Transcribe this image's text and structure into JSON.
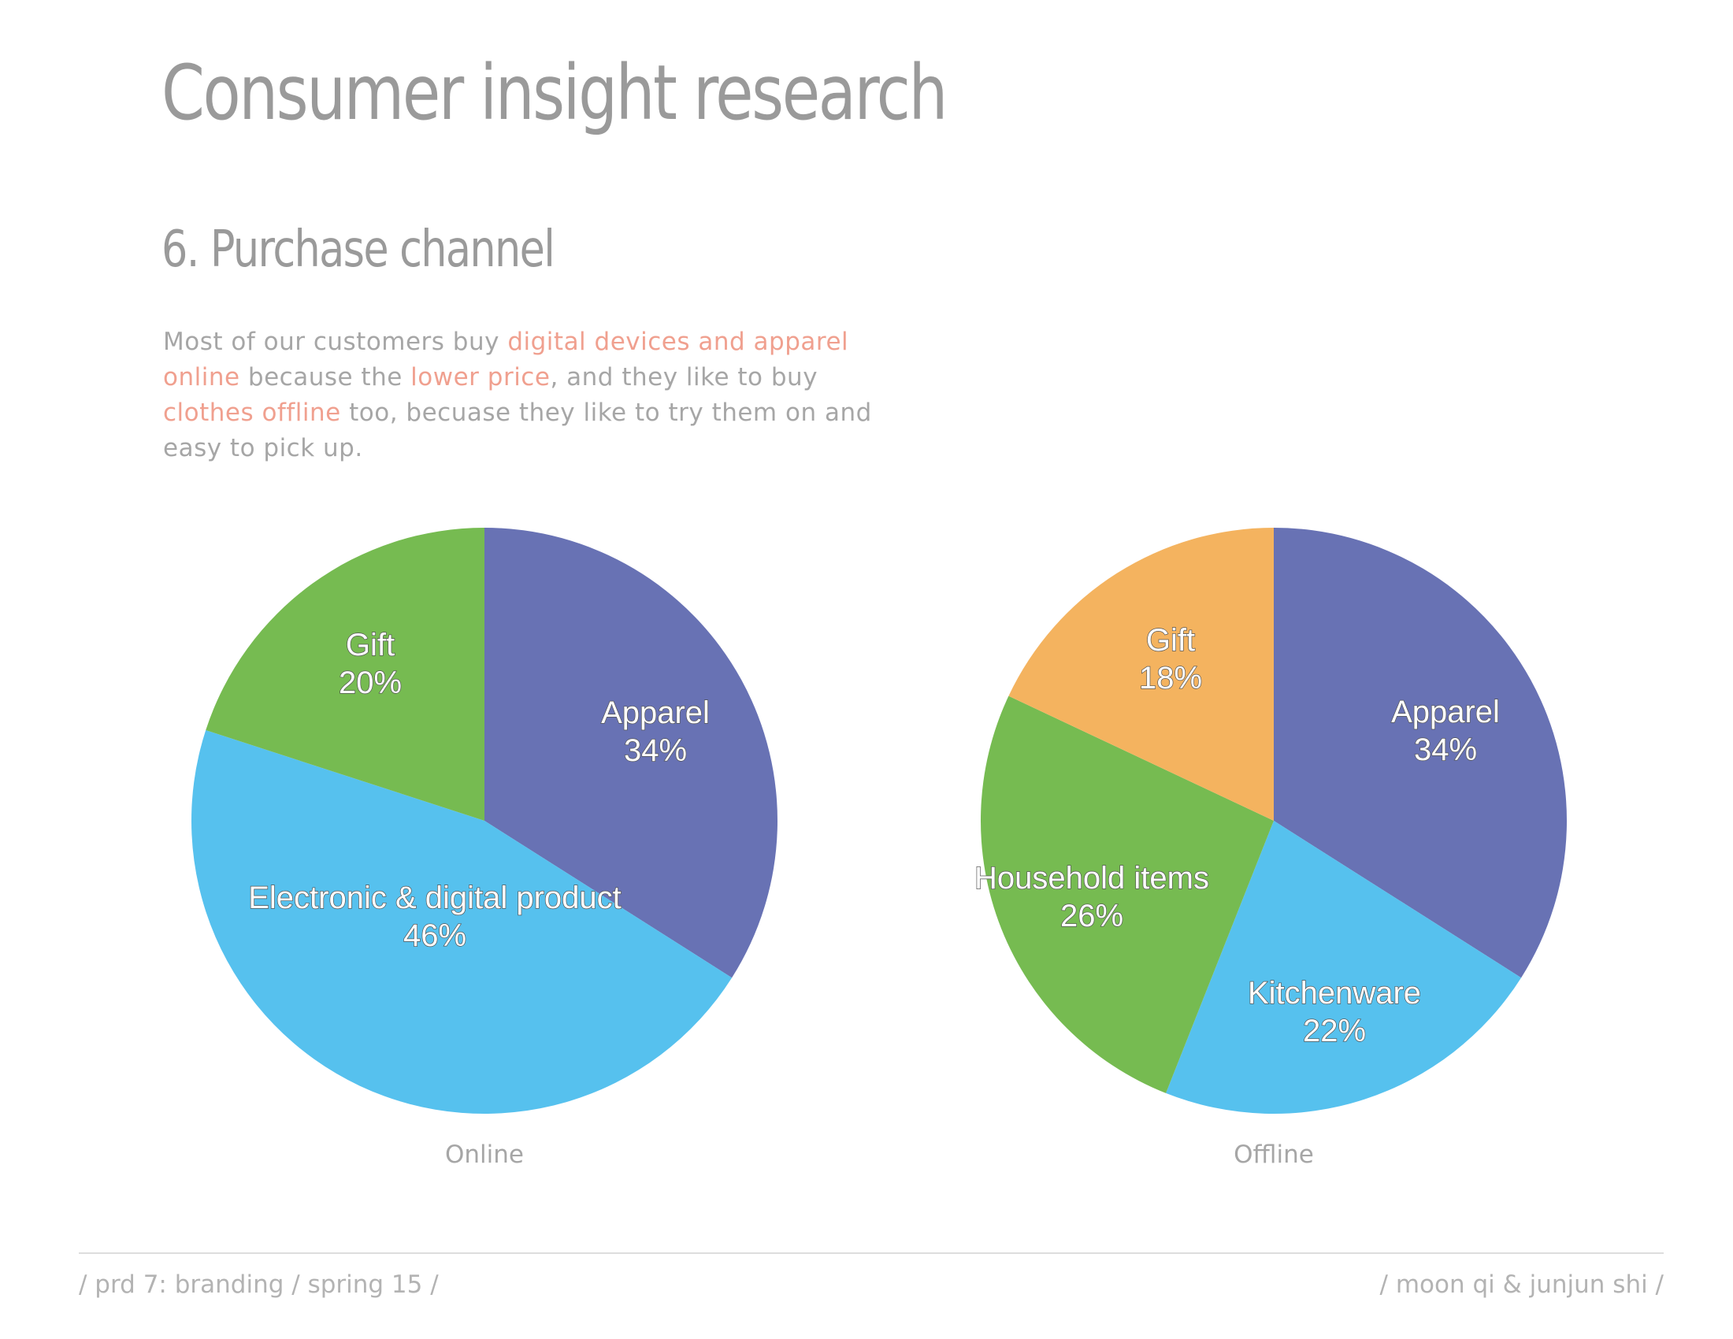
{
  "page": {
    "title": "Consumer insight research",
    "subtitle": "6. Purchase channel",
    "intro": [
      {
        "text": "Most of our customers buy ",
        "highlight": false
      },
      {
        "text": "digital devices and apparel online",
        "highlight": true
      },
      {
        "text": " because the ",
        "highlight": false
      },
      {
        "text": "lower price",
        "highlight": true
      },
      {
        "text": ", and they like to buy ",
        "highlight": false
      },
      {
        "text": "clothes offline",
        "highlight": true
      },
      {
        "text": " too, becuase they like to try them on and easy to pick up.",
        "highlight": false
      }
    ],
    "highlight_color": "#f0a08f"
  },
  "footer": {
    "left": "/ prd 7: branding / spring 15 /",
    "right": "/ moon qi & junjun shi /"
  },
  "chart_data": [
    {
      "type": "pie",
      "title": "Online",
      "unit": "%",
      "slices": [
        {
          "label": "Apparel",
          "value": 34,
          "color": "#6872b4"
        },
        {
          "label": "Electronic & digital product",
          "value": 46,
          "color": "#56c1ee"
        },
        {
          "label": "Gift",
          "value": 20,
          "color": "#76bb51"
        }
      ],
      "start_angle": "12 o'clock",
      "direction": "clockwise"
    },
    {
      "type": "pie",
      "title": "Offline",
      "unit": "%",
      "slices": [
        {
          "label": "Apparel",
          "value": 34,
          "color": "#6872b4"
        },
        {
          "label": "Kitchenware",
          "value": 22,
          "color": "#56c1ee"
        },
        {
          "label": "Household items",
          "value": 26,
          "color": "#76bb51"
        },
        {
          "label": "Gift",
          "value": 18,
          "color": "#f4b35f"
        }
      ],
      "start_angle": "12 o'clock",
      "direction": "clockwise"
    }
  ]
}
